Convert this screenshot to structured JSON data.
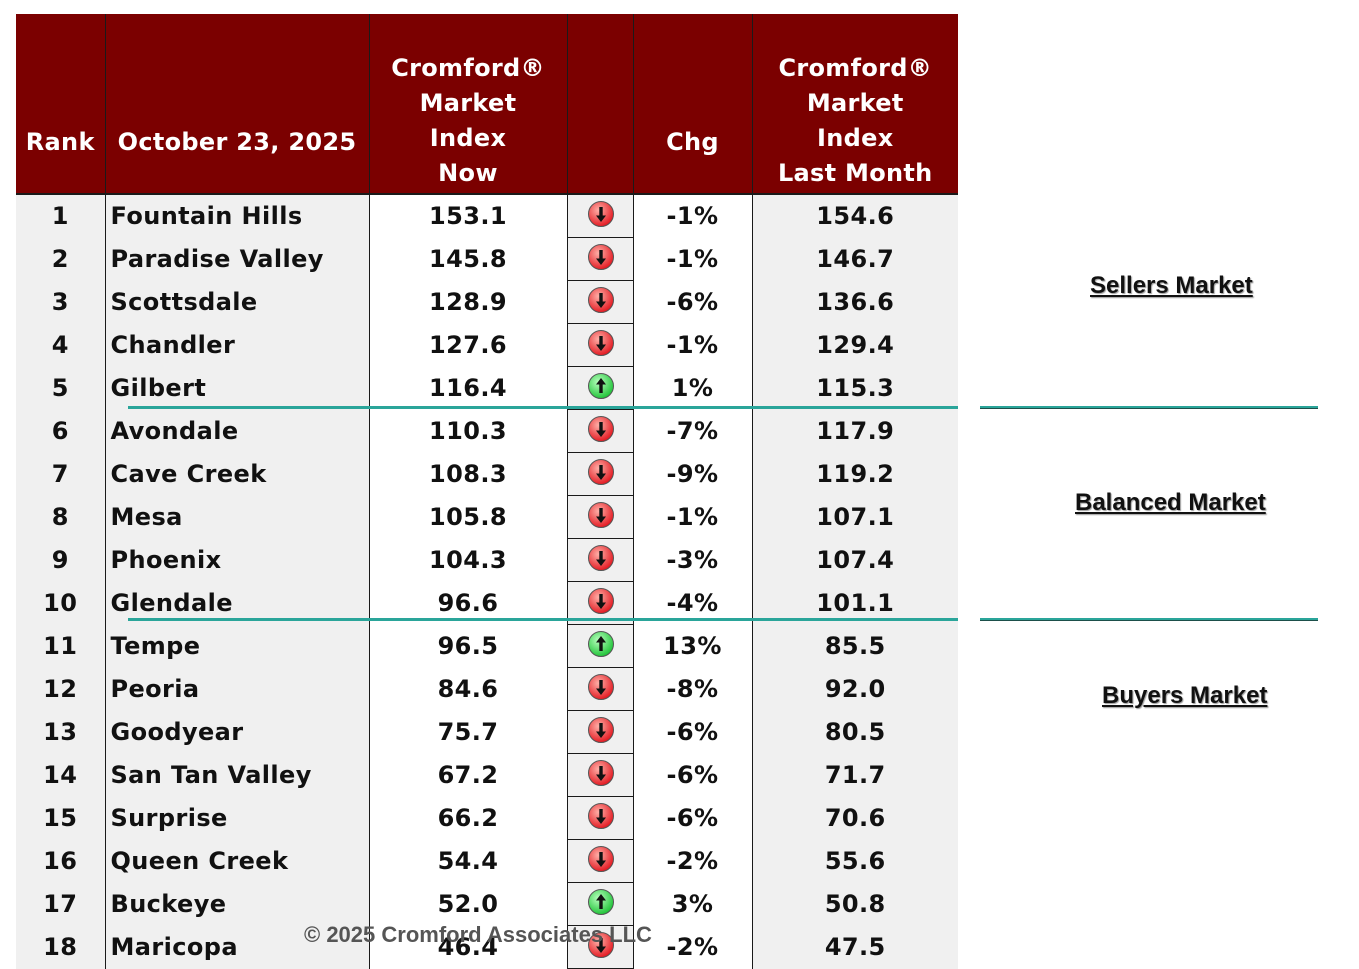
{
  "table": {
    "headers": {
      "rank": "Rank",
      "date": "October 23, 2025",
      "now": [
        "Cromford®",
        "Market",
        "Index",
        "Now"
      ],
      "chg": "Chg",
      "last": [
        "Cromford®",
        "Market",
        "Index",
        "Last Month"
      ]
    },
    "rows": [
      {
        "rank": "1",
        "city": "Fountain Hills",
        "now": "153.1",
        "dir": "down",
        "chg": "-1%",
        "last": "154.6"
      },
      {
        "rank": "2",
        "city": "Paradise Valley",
        "now": "145.8",
        "dir": "down",
        "chg": "-1%",
        "last": "146.7"
      },
      {
        "rank": "3",
        "city": "Scottsdale",
        "now": "128.9",
        "dir": "down",
        "chg": "-6%",
        "last": "136.6"
      },
      {
        "rank": "4",
        "city": "Chandler",
        "now": "127.6",
        "dir": "down",
        "chg": "-1%",
        "last": "129.4"
      },
      {
        "rank": "5",
        "city": "Gilbert",
        "now": "116.4",
        "dir": "up",
        "chg": "1%",
        "last": "115.3"
      },
      {
        "rank": "6",
        "city": "Avondale",
        "now": "110.3",
        "dir": "down",
        "chg": "-7%",
        "last": "117.9"
      },
      {
        "rank": "7",
        "city": "Cave Creek",
        "now": "108.3",
        "dir": "down",
        "chg": "-9%",
        "last": "119.2"
      },
      {
        "rank": "8",
        "city": "Mesa",
        "now": "105.8",
        "dir": "down",
        "chg": "-1%",
        "last": "107.1"
      },
      {
        "rank": "9",
        "city": "Phoenix",
        "now": "104.3",
        "dir": "down",
        "chg": "-3%",
        "last": "107.4"
      },
      {
        "rank": "10",
        "city": "Glendale",
        "now": "96.6",
        "dir": "down",
        "chg": "-4%",
        "last": "101.1"
      },
      {
        "rank": "11",
        "city": "Tempe",
        "now": "96.5",
        "dir": "up",
        "chg": "13%",
        "last": "85.5"
      },
      {
        "rank": "12",
        "city": "Peoria",
        "now": "84.6",
        "dir": "down",
        "chg": "-8%",
        "last": "92.0"
      },
      {
        "rank": "13",
        "city": "Goodyear",
        "now": "75.7",
        "dir": "down",
        "chg": "-6%",
        "last": "80.5"
      },
      {
        "rank": "14",
        "city": "San Tan Valley",
        "now": "67.2",
        "dir": "down",
        "chg": "-6%",
        "last": "71.7"
      },
      {
        "rank": "15",
        "city": "Surprise",
        "now": "66.2",
        "dir": "down",
        "chg": "-6%",
        "last": "70.6"
      },
      {
        "rank": "16",
        "city": "Queen Creek",
        "now": "54.4",
        "dir": "down",
        "chg": "-2%",
        "last": "55.6"
      },
      {
        "rank": "17",
        "city": "Buckeye",
        "now": "52.0",
        "dir": "up",
        "chg": "3%",
        "last": "50.8"
      },
      {
        "rank": "18",
        "city": "Maricopa",
        "now": "46.4",
        "dir": "down",
        "chg": "-2%",
        "last": "47.5"
      }
    ]
  },
  "zones": {
    "sellers": "Sellers Market",
    "balanced": "Balanced Market",
    "buyers": "Buyers Market"
  },
  "copyright": "© 2025 Cromford Associates LLC",
  "colors": {
    "header_bg": "#7b0000",
    "divider_line": "#2aa59a",
    "arrow_down": "#e31b23",
    "arrow_up": "#22c43a"
  },
  "chart_data": {
    "type": "table",
    "columns": [
      "Rank",
      "October 23, 2025",
      "Cromford® Market Index Now",
      "Chg",
      "Cromford® Market Index Last Month"
    ],
    "categories": [
      "Fountain Hills",
      "Paradise Valley",
      "Scottsdale",
      "Chandler",
      "Gilbert",
      "Avondale",
      "Cave Creek",
      "Mesa",
      "Phoenix",
      "Glendale",
      "Tempe",
      "Peoria",
      "Goodyear",
      "San Tan Valley",
      "Surprise",
      "Queen Creek",
      "Buckeye",
      "Maricopa"
    ],
    "series": [
      {
        "name": "Cromford® Market Index Now",
        "values": [
          153.1,
          145.8,
          128.9,
          127.6,
          116.4,
          110.3,
          108.3,
          105.8,
          104.3,
          96.6,
          96.5,
          84.6,
          75.7,
          67.2,
          66.2,
          54.4,
          52.0,
          46.4
        ]
      },
      {
        "name": "Chg",
        "values": [
          "-1%",
          "-1%",
          "-6%",
          "-1%",
          "1%",
          "-7%",
          "-9%",
          "-1%",
          "-3%",
          "-4%",
          "13%",
          "-8%",
          "-6%",
          "-6%",
          "-6%",
          "-2%",
          "3%",
          "-2%"
        ]
      },
      {
        "name": "Cromford® Market Index Last Month",
        "values": [
          154.6,
          146.7,
          136.6,
          129.4,
          115.3,
          117.9,
          119.2,
          107.1,
          107.4,
          101.1,
          85.5,
          92.0,
          80.5,
          71.7,
          70.6,
          55.6,
          50.8,
          47.5
        ]
      }
    ],
    "zones": [
      "Sellers Market",
      "Balanced Market",
      "Buyers Market"
    ]
  }
}
